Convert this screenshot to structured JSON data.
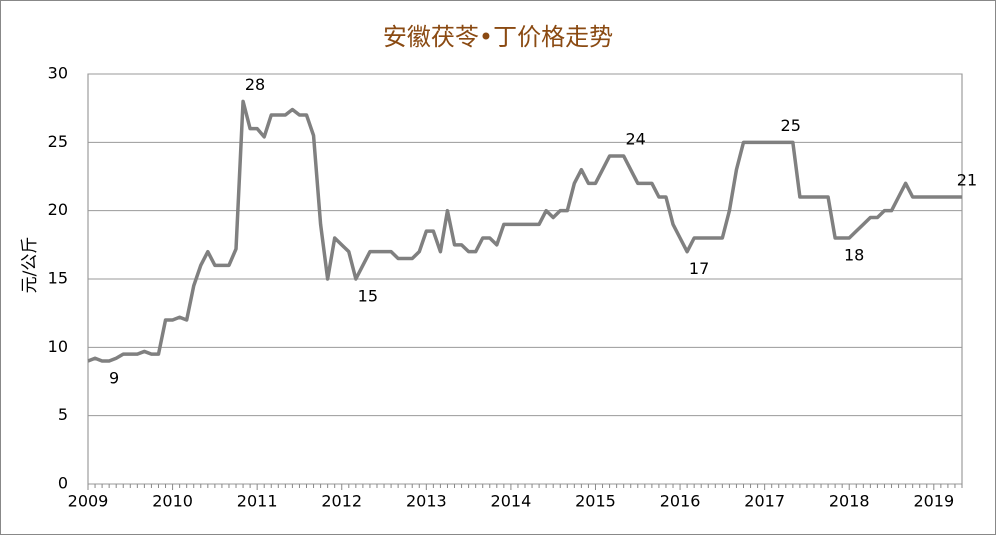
{
  "chart_data": {
    "type": "line",
    "title": "安徽茯苓•丁价格走势",
    "ylabel": "元/公斤",
    "categories": [
      "2009",
      null,
      null,
      null,
      null,
      null,
      null,
      null,
      null,
      null,
      null,
      null,
      "2010",
      null,
      null,
      null,
      null,
      null,
      null,
      null,
      null,
      null,
      null,
      null,
      "2011",
      null,
      null,
      null,
      null,
      null,
      null,
      null,
      null,
      null,
      null,
      null,
      "2012",
      null,
      null,
      null,
      null,
      null,
      null,
      null,
      null,
      null,
      null,
      null,
      "2013",
      null,
      null,
      null,
      null,
      null,
      null,
      null,
      null,
      null,
      null,
      null,
      "2014",
      null,
      null,
      null,
      null,
      null,
      null,
      null,
      null,
      null,
      null,
      null,
      "2015",
      null,
      null,
      null,
      null,
      null,
      null,
      null,
      null,
      null,
      null,
      null,
      "2016",
      null,
      null,
      null,
      null,
      null,
      null,
      null,
      null,
      null,
      null,
      null,
      "2017",
      null,
      null,
      null,
      null,
      null,
      null,
      null,
      null,
      null,
      null,
      null,
      "2018",
      null,
      null,
      null,
      null,
      null,
      null,
      null,
      null,
      null,
      null,
      null,
      "2019",
      null,
      null,
      null,
      null
    ],
    "values": [
      9,
      9.2,
      9,
      9,
      9.2,
      9.5,
      9.5,
      9.5,
      9.7,
      9.5,
      9.5,
      12,
      12,
      12.2,
      12,
      14.5,
      16,
      17,
      16,
      16,
      16,
      17.2,
      28,
      26,
      26,
      25.4,
      27,
      27,
      27,
      27.4,
      27,
      27,
      25.5,
      19,
      15,
      18,
      17.5,
      17,
      15,
      16,
      17,
      17,
      17,
      17,
      16.5,
      16.5,
      16.5,
      17,
      18.5,
      18.5,
      17,
      20,
      17.5,
      17.5,
      17,
      17,
      18,
      18,
      17.5,
      19,
      19,
      19,
      19,
      19,
      19,
      20,
      19.5,
      20,
      20,
      22,
      23,
      22,
      22,
      23,
      24,
      24,
      24,
      23,
      22,
      22,
      22,
      21,
      21,
      19,
      18,
      17,
      18,
      18,
      18,
      18,
      18,
      20,
      23,
      25,
      25,
      25,
      25,
      25,
      25,
      25,
      25,
      21,
      21,
      21,
      21,
      21,
      18,
      18,
      18,
      18.5,
      19,
      19.5,
      19.5,
      20,
      20,
      21,
      22,
      21,
      21,
      21,
      21,
      21,
      21,
      21,
      21
    ],
    "value_labels": [
      null,
      null,
      "9",
      null,
      null,
      null,
      null,
      null,
      null,
      null,
      null,
      null,
      null,
      null,
      null,
      null,
      null,
      null,
      null,
      null,
      null,
      null,
      "28",
      null,
      null,
      null,
      null,
      null,
      null,
      null,
      null,
      null,
      null,
      null,
      null,
      null,
      null,
      null,
      "15",
      null,
      null,
      null,
      null,
      null,
      null,
      null,
      null,
      null,
      null,
      null,
      null,
      null,
      null,
      null,
      null,
      null,
      null,
      null,
      null,
      null,
      null,
      null,
      null,
      null,
      null,
      null,
      null,
      null,
      null,
      null,
      null,
      null,
      null,
      null,
      null,
      null,
      "24",
      null,
      null,
      null,
      null,
      null,
      null,
      null,
      null,
      "17",
      null,
      null,
      null,
      null,
      null,
      null,
      null,
      null,
      null,
      null,
      null,
      null,
      "25",
      null,
      null,
      null,
      null,
      null,
      null,
      null,
      null,
      "18",
      null,
      null,
      null,
      null,
      null,
      null,
      null,
      null,
      null,
      null,
      null,
      null,
      null,
      null,
      null,
      "21",
      null
    ],
    "color": "#808080",
    "ylim": [
      0,
      30
    ],
    "yticks": [
      0,
      5,
      10,
      15,
      20,
      25,
      30
    ],
    "grid": true
  }
}
